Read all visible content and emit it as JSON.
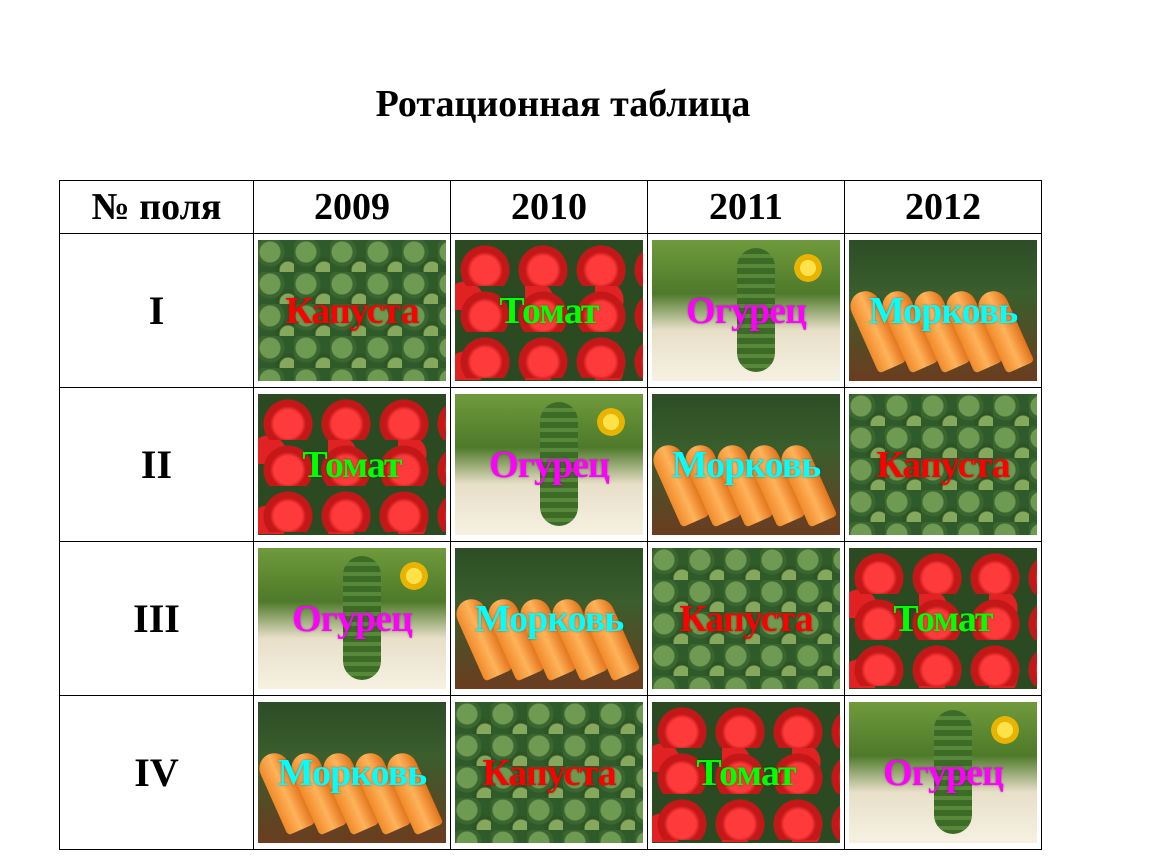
{
  "title": "Ротационная таблица",
  "table": {
    "header": [
      "№ поля",
      "2009",
      "2010",
      "2011",
      "2012"
    ],
    "rows": [
      {
        "field": "I",
        "crops": [
          "Капуста",
          "Томат",
          "Огурец",
          "Морковь"
        ]
      },
      {
        "field": "II",
        "crops": [
          "Томат",
          "Огурец",
          "Морковь",
          "Капуста"
        ]
      },
      {
        "field": "III",
        "crops": [
          "Огурец",
          "Морковь",
          "Капуста",
          "Томат"
        ]
      },
      {
        "field": "IV",
        "crops": [
          "Морковь",
          "Капуста",
          "Томат",
          "Огурец"
        ]
      }
    ]
  },
  "crop_images": {
    "Капуста": "cabbage-photo",
    "Томат": "tomato-photo",
    "Огурец": "cucumber-photo",
    "Морковь": "carrot-photo"
  },
  "label_colors": {
    "Капуста": "#ff0000",
    "Томат": "#00ff00",
    "Огурец": "#ff00ff",
    "Морковь": "#00ffff"
  }
}
